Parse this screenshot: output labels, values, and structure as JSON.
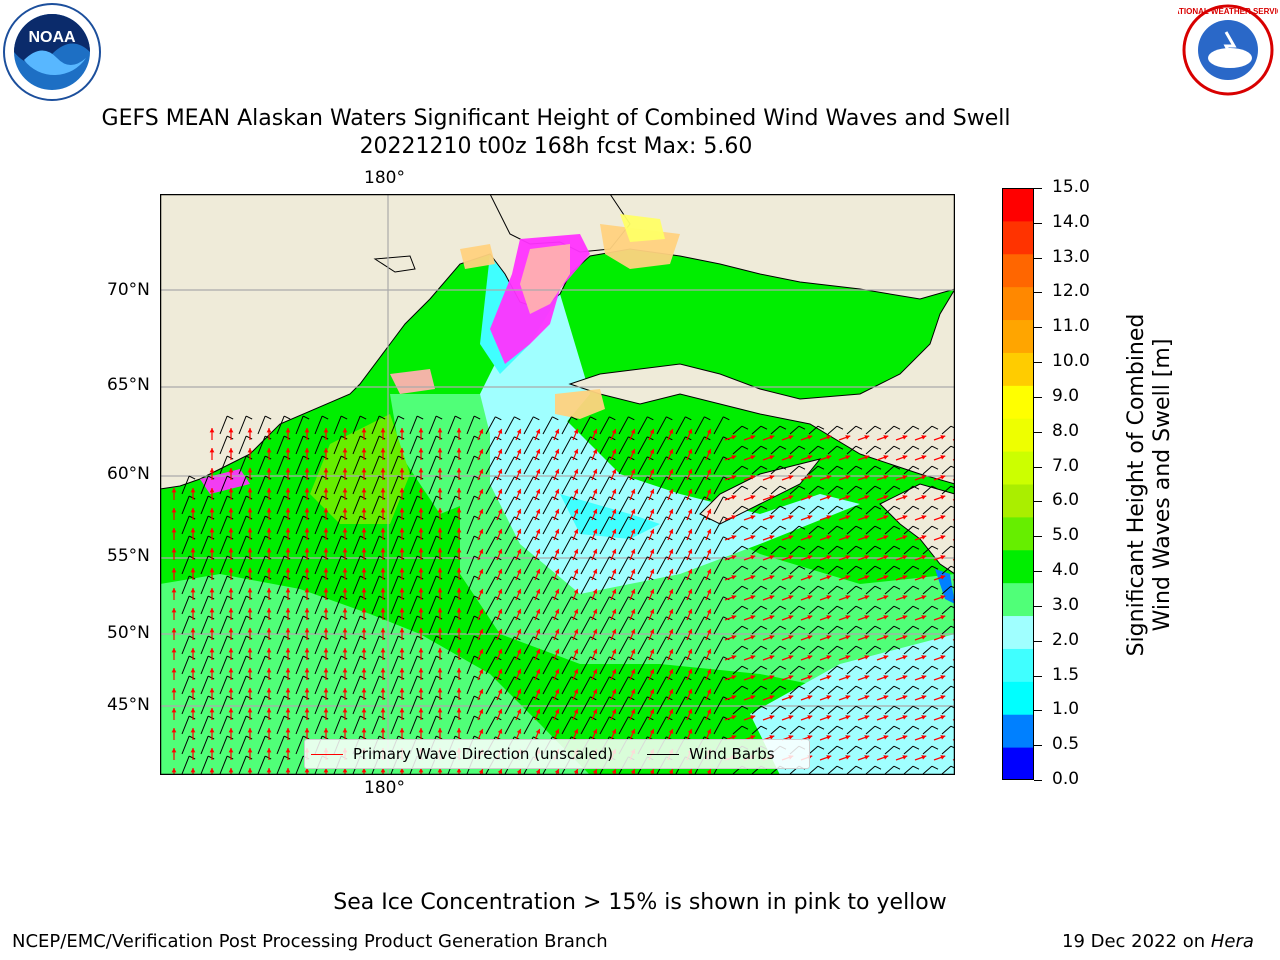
{
  "header": {
    "title_line1": "GEFS MEAN Alaskan Waters Significant Height of Combined Wind Waves and Swell",
    "title_line2": "20221210 t00z 168h fcst   Max: 5.60"
  },
  "logos": {
    "left": "noaa-logo",
    "right": "nws-logo",
    "left_text": "NOAA",
    "right_text": "NATIONAL WEATHER SERVICE"
  },
  "map": {
    "lon_label_top": "180°",
    "lon_label_bottom": "180°",
    "lat_labels": [
      "70°N",
      "65°N",
      "60°N",
      "55°N",
      "50°N",
      "45°N"
    ],
    "land_color": "#efebd9",
    "ice_colors": [
      "#ff33ff",
      "#ffb0b0",
      "#ffd27f",
      "#ffff66"
    ],
    "wave_arrow_color": "#ff0000",
    "wind_barb_color": "#000000"
  },
  "legend": {
    "wave_label": "Primary Wave Direction (unscaled)",
    "wind_label": "Wind Barbs"
  },
  "colorbar": {
    "label_line1": "Significant Height of Combined",
    "label_line2": "Wind Waves and Swell [m]",
    "ticks": [
      "15.0",
      "14.0",
      "13.0",
      "12.0",
      "11.0",
      "10.0",
      "9.0",
      "8.0",
      "7.0",
      "6.0",
      "5.0",
      "4.0",
      "3.0",
      "2.0",
      "1.5",
      "1.0",
      "0.5",
      "0.0"
    ],
    "colors": [
      "#0000ff",
      "#0080ff",
      "#00ffff",
      "#40ffff",
      "#a0ffff",
      "#50ff78",
      "#00ee00",
      "#66ee00",
      "#aaee00",
      "#ccff00",
      "#eeff00",
      "#ffff00",
      "#ffcc00",
      "#ffa500",
      "#ff8800",
      "#ff6600",
      "#ff3300",
      "#ff0000"
    ]
  },
  "caption": "Sea Ice Concentration > 15% is shown in pink to yellow",
  "footer": {
    "left": "NCEP/EMC/Verification Post Processing Product Generation Branch",
    "right_date": "19 Dec 2022 on ",
    "right_host": "Hera"
  }
}
